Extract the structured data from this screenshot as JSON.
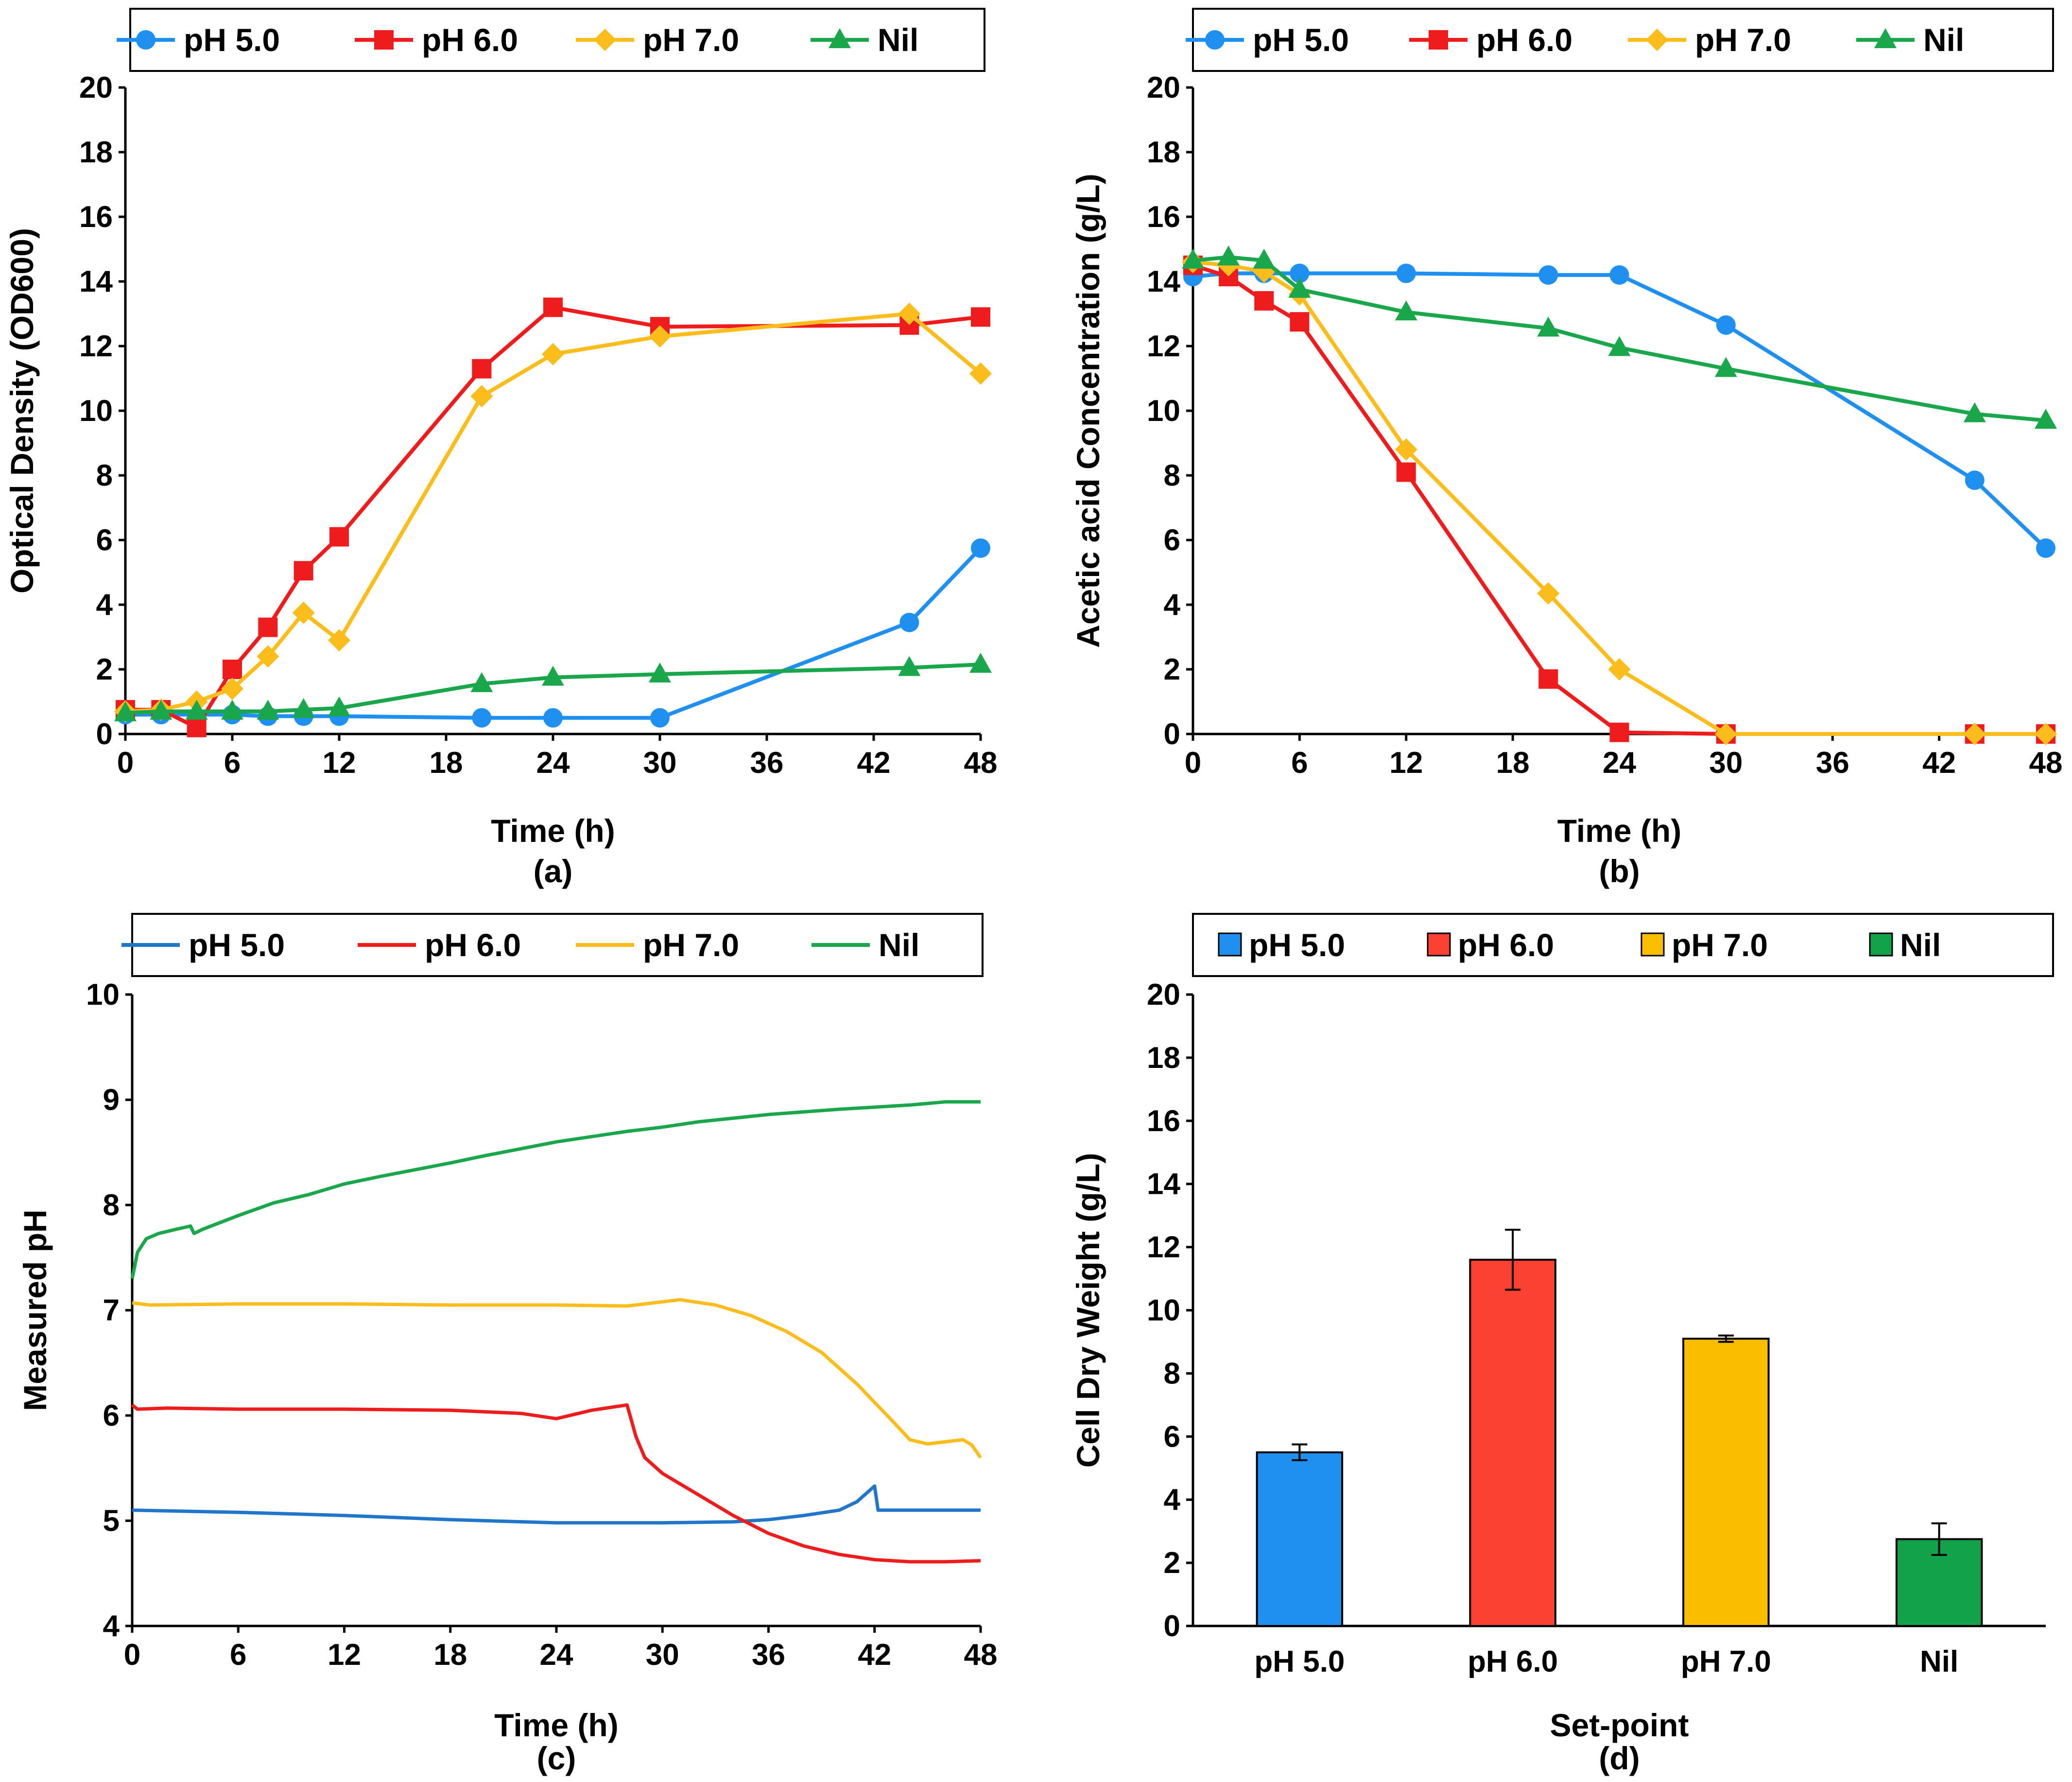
{
  "chart_data": [
    {
      "id": "a",
      "type": "line",
      "panel_label": "(a)",
      "xlabel": "Time (h)",
      "ylabel": "Optical Density (OD600)",
      "xlim": [
        0,
        48
      ],
      "ylim": [
        0,
        20
      ],
      "xticks": [
        0,
        6,
        12,
        18,
        24,
        30,
        36,
        42,
        48
      ],
      "yticks": [
        0,
        2,
        4,
        6,
        8,
        10,
        12,
        14,
        16,
        18,
        20
      ],
      "legend_position": "top",
      "series": [
        {
          "name": "pH 5.0",
          "color": "#1f8ff0",
          "marker": "circle",
          "x": [
            0,
            2,
            6,
            8,
            10,
            12,
            20,
            24,
            30,
            44,
            48
          ],
          "y": [
            0.6,
            0.6,
            0.6,
            0.55,
            0.55,
            0.55,
            0.5,
            0.5,
            0.5,
            3.45,
            5.75
          ]
        },
        {
          "name": "pH 6.0",
          "color": "#ee1c1c",
          "marker": "square",
          "x": [
            0,
            2,
            4,
            6,
            8,
            10,
            12,
            20,
            24,
            30,
            44,
            48
          ],
          "y": [
            0.75,
            0.75,
            0.2,
            2.0,
            3.3,
            5.05,
            6.1,
            11.3,
            13.2,
            12.6,
            12.65,
            12.9
          ]
        },
        {
          "name": "pH 7.0",
          "color": "#fbbd1c",
          "marker": "diamond",
          "x": [
            0,
            2,
            4,
            6,
            8,
            10,
            12,
            20,
            24,
            30,
            44,
            48
          ],
          "y": [
            0.7,
            0.75,
            1.0,
            1.4,
            2.4,
            3.75,
            2.9,
            10.45,
            11.75,
            12.3,
            13.0,
            11.15
          ]
        },
        {
          "name": "Nil",
          "color": "#1aa64b",
          "marker": "triangle",
          "x": [
            0,
            2,
            4,
            6,
            8,
            10,
            12,
            20,
            24,
            30,
            44,
            48
          ],
          "y": [
            0.65,
            0.7,
            0.7,
            0.7,
            0.7,
            0.75,
            0.8,
            1.55,
            1.75,
            1.85,
            2.05,
            2.15
          ]
        }
      ]
    },
    {
      "id": "b",
      "type": "line",
      "panel_label": "(b)",
      "xlabel": "Time (h)",
      "ylabel": "Acetic acid Concentration (g/L)",
      "xlim": [
        0,
        48
      ],
      "ylim": [
        0,
        20
      ],
      "xticks": [
        0,
        6,
        12,
        18,
        24,
        30,
        36,
        42,
        48
      ],
      "yticks": [
        0,
        2,
        4,
        6,
        8,
        10,
        12,
        14,
        16,
        18,
        20
      ],
      "legend_position": "top",
      "series": [
        {
          "name": "pH 5.0",
          "color": "#1f8ff0",
          "marker": "circle",
          "x": [
            0,
            2,
            4,
            6,
            12,
            20,
            24,
            30,
            44,
            48
          ],
          "y": [
            14.15,
            14.25,
            14.25,
            14.25,
            14.25,
            14.2,
            14.2,
            12.65,
            7.85,
            5.75
          ]
        },
        {
          "name": "pH 6.0",
          "color": "#ee1c1c",
          "marker": "square",
          "x": [
            0,
            2,
            4,
            6,
            12,
            20,
            24,
            30,
            44,
            48
          ],
          "y": [
            14.5,
            14.15,
            13.4,
            12.75,
            8.1,
            1.7,
            0.05,
            0.0,
            0.0,
            0.0
          ]
        },
        {
          "name": "pH 7.0",
          "color": "#fbbd1c",
          "marker": "diamond",
          "x": [
            0,
            2,
            4,
            6,
            12,
            20,
            24,
            30,
            44,
            48
          ],
          "y": [
            14.6,
            14.5,
            14.3,
            13.6,
            8.8,
            4.35,
            2.0,
            0.0,
            0.0,
            0.0
          ]
        },
        {
          "name": "Nil",
          "color": "#1aa64b",
          "marker": "triangle",
          "x": [
            0,
            2,
            4,
            6,
            12,
            20,
            24,
            30,
            44,
            48
          ],
          "y": [
            14.65,
            14.75,
            14.65,
            13.75,
            13.05,
            12.55,
            11.95,
            11.3,
            9.9,
            9.7
          ]
        }
      ]
    },
    {
      "id": "c",
      "type": "line",
      "panel_label": "(c)",
      "xlabel": "Time (h)",
      "ylabel": "Measured pH",
      "xlim": [
        0,
        48
      ],
      "ylim": [
        4,
        10
      ],
      "xticks": [
        0,
        6,
        12,
        18,
        24,
        30,
        36,
        42,
        48
      ],
      "yticks": [
        4,
        5,
        6,
        7,
        8,
        9,
        10
      ],
      "legend_position": "top",
      "series": [
        {
          "name": "pH 5.0",
          "color": "#2176c9",
          "x": [
            0,
            6,
            12,
            18,
            24,
            30,
            34,
            36,
            38,
            40,
            41,
            42,
            42.2,
            44,
            48
          ],
          "y": [
            5.1,
            5.08,
            5.05,
            5.01,
            4.98,
            4.98,
            4.99,
            5.01,
            5.05,
            5.1,
            5.18,
            5.33,
            5.1,
            5.1,
            5.1
          ]
        },
        {
          "name": "pH 6.0",
          "color": "#ee1c1c",
          "x": [
            0,
            0.3,
            2,
            6,
            12,
            18,
            22,
            24,
            26,
            28,
            28.5,
            29,
            30,
            32,
            34,
            36,
            38,
            40,
            42,
            44,
            46,
            48
          ],
          "y": [
            6.1,
            6.06,
            6.07,
            6.06,
            6.06,
            6.05,
            6.02,
            5.97,
            6.05,
            6.1,
            5.8,
            5.6,
            5.45,
            5.25,
            5.05,
            4.88,
            4.76,
            4.68,
            4.63,
            4.61,
            4.61,
            4.62
          ]
        },
        {
          "name": "pH 7.0",
          "color": "#fbbd1c",
          "x": [
            0,
            1,
            6,
            12,
            18,
            24,
            28,
            31,
            33,
            35,
            37,
            39,
            41,
            43,
            44,
            45,
            46,
            47,
            47.5,
            48
          ],
          "y": [
            7.07,
            7.05,
            7.06,
            7.06,
            7.05,
            7.05,
            7.04,
            7.1,
            7.05,
            6.95,
            6.8,
            6.6,
            6.3,
            5.95,
            5.77,
            5.73,
            5.75,
            5.77,
            5.72,
            5.6
          ]
        },
        {
          "name": "Nil",
          "color": "#1aa64b",
          "x": [
            0,
            0.3,
            0.8,
            1.5,
            2.5,
            3.3,
            3.5,
            4,
            6,
            8,
            10,
            12,
            14,
            18,
            20,
            24,
            28,
            30,
            32,
            36,
            40,
            44,
            46,
            48
          ],
          "y": [
            7.3,
            7.55,
            7.68,
            7.73,
            7.77,
            7.8,
            7.73,
            7.77,
            7.9,
            8.02,
            8.1,
            8.2,
            8.27,
            8.4,
            8.47,
            8.6,
            8.7,
            8.74,
            8.79,
            8.86,
            8.91,
            8.95,
            8.98,
            8.98
          ]
        }
      ]
    },
    {
      "id": "d",
      "type": "bar",
      "panel_label": "(d)",
      "xlabel": "Set-point",
      "ylabel": "Cell Dry Weight (g/L)",
      "ylim": [
        0,
        20
      ],
      "yticks": [
        0,
        2,
        4,
        6,
        8,
        10,
        12,
        14,
        16,
        18,
        20
      ],
      "legend_position": "top",
      "categories": [
        "pH 5.0",
        "pH 6.0",
        "pH 7.0",
        "Nil"
      ],
      "values": [
        5.5,
        11.6,
        9.1,
        2.75
      ],
      "errors": [
        0.25,
        0.95,
        0.1,
        0.5
      ],
      "colors": [
        "#1f8ff0",
        "#fb4132",
        "#fbbd00",
        "#12a34a"
      ]
    }
  ]
}
